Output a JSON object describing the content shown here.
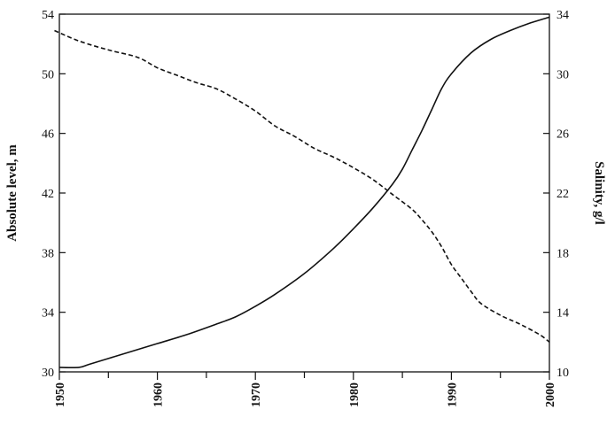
{
  "chart_data": {
    "type": "line",
    "title": "",
    "xlabel": "",
    "ylabel_left": "Absolute level, m",
    "ylabel_right": "Salinity, g/l",
    "xlim": [
      1950,
      2000
    ],
    "ylim_left": [
      30,
      54
    ],
    "ylim_right": [
      10,
      34
    ],
    "x_ticks": [
      1950,
      1960,
      1970,
      1980,
      1990,
      2000
    ],
    "x_minor_step": 5,
    "y_left_ticks": [
      30,
      34,
      38,
      42,
      46,
      50,
      54
    ],
    "y_right_ticks": [
      10,
      14,
      18,
      22,
      26,
      30,
      34
    ],
    "grid": false,
    "series": [
      {
        "axis": "left",
        "style": "solid",
        "points": [
          [
            1950,
            30.3
          ],
          [
            1952,
            30.3
          ],
          [
            1953,
            30.5
          ],
          [
            1955,
            30.9
          ],
          [
            1957,
            31.3
          ],
          [
            1960,
            31.9
          ],
          [
            1963,
            32.5
          ],
          [
            1966,
            33.2
          ],
          [
            1968,
            33.7
          ],
          [
            1970,
            34.4
          ],
          [
            1972,
            35.2
          ],
          [
            1975,
            36.6
          ],
          [
            1978,
            38.3
          ],
          [
            1980,
            39.6
          ],
          [
            1982,
            41.0
          ],
          [
            1984,
            42.6
          ],
          [
            1985,
            43.6
          ],
          [
            1986,
            44.9
          ],
          [
            1987,
            46.2
          ],
          [
            1988,
            47.6
          ],
          [
            1989,
            49.0
          ],
          [
            1990,
            50.0
          ],
          [
            1992,
            51.4
          ],
          [
            1994,
            52.3
          ],
          [
            1996,
            52.9
          ],
          [
            1998,
            53.4
          ],
          [
            2000,
            53.8
          ]
        ]
      },
      {
        "axis": "right",
        "style": "dashed",
        "points": [
          [
            1949.5,
            32.9
          ],
          [
            1952,
            32.2
          ],
          [
            1955,
            31.6
          ],
          [
            1958,
            31.1
          ],
          [
            1960,
            30.4
          ],
          [
            1962,
            29.9
          ],
          [
            1964,
            29.4
          ],
          [
            1966,
            29.0
          ],
          [
            1968,
            28.3
          ],
          [
            1970,
            27.5
          ],
          [
            1972,
            26.5
          ],
          [
            1974,
            25.8
          ],
          [
            1976,
            25.0
          ],
          [
            1978,
            24.4
          ],
          [
            1980,
            23.7
          ],
          [
            1982,
            22.9
          ],
          [
            1984,
            21.9
          ],
          [
            1986,
            20.9
          ],
          [
            1987,
            20.2
          ],
          [
            1988,
            19.4
          ],
          [
            1989,
            18.4
          ],
          [
            1990,
            17.2
          ],
          [
            1991,
            16.3
          ],
          [
            1992,
            15.4
          ],
          [
            1993,
            14.6
          ],
          [
            1995,
            13.8
          ],
          [
            1997,
            13.2
          ],
          [
            1999,
            12.5
          ],
          [
            2000,
            12.0
          ]
        ]
      }
    ]
  }
}
